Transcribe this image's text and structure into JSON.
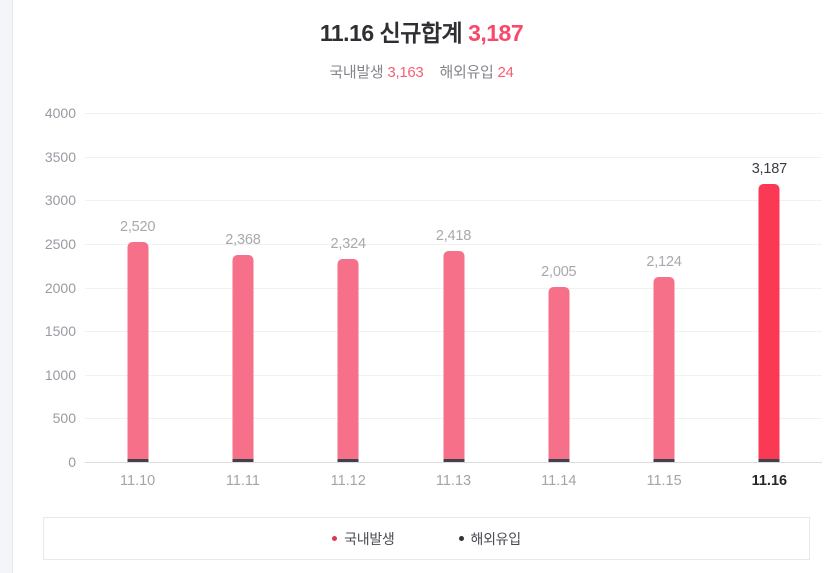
{
  "header": {
    "title_prefix": "11.16 신규합계",
    "title_value": "3,187",
    "subtitle_items": [
      {
        "label": "국내발생",
        "value": "3,163"
      },
      {
        "label": "해외유입",
        "value": "24"
      }
    ]
  },
  "chart_data": {
    "type": "bar",
    "title": "11.16 신규합계 3,187",
    "subtitle": "국내발생 3,163 해외유입 24",
    "categories": [
      "11.10",
      "11.11",
      "11.12",
      "11.13",
      "11.14",
      "11.15",
      "11.16"
    ],
    "values": [
      2520,
      2368,
      2324,
      2418,
      2005,
      2124,
      3187
    ],
    "value_labels": [
      "2,520",
      "2,368",
      "2,324",
      "2,418",
      "2,005",
      "2,124",
      "3,187"
    ],
    "highlight_index": 6,
    "xlabel": "",
    "ylabel": "",
    "ylim": [
      0,
      4000
    ],
    "ytick_step": 500,
    "grid": true,
    "legend_position": "bottom",
    "stacked_note": "each bar has a thin dark base segment for 해외유입",
    "colors": {
      "bar": "#f7708a",
      "bar_highlight": "#fa3a54",
      "bar_base": "#41414d",
      "title_accent": "#f9486a",
      "subtitle_accent": "#f55f74",
      "axis_text": "#9a9aa2",
      "value_text": "#a8a8ae",
      "value_text_highlight": "#3c3c44"
    }
  },
  "legend": {
    "items": [
      {
        "label": "국내발생",
        "color": "#e23650"
      },
      {
        "label": "해외유입",
        "color": "#33333e"
      }
    ]
  }
}
